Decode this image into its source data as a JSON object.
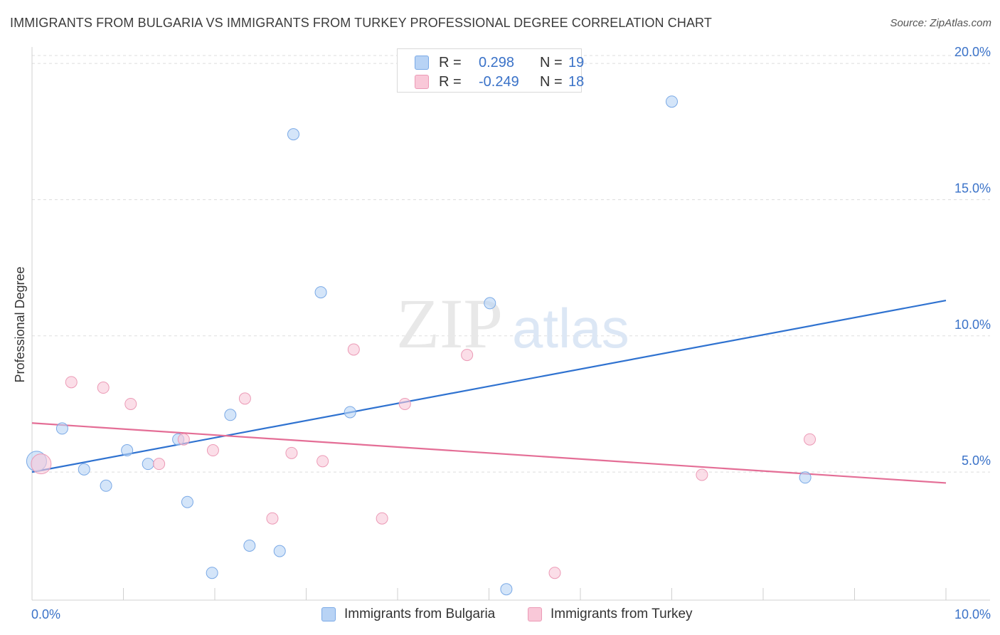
{
  "title": "IMMIGRANTS FROM BULGARIA VS IMMIGRANTS FROM TURKEY PROFESSIONAL DEGREE CORRELATION CHART",
  "source": "Source: ZipAtlas.com",
  "watermark": {
    "zip": "ZIP",
    "atlas": "atlas"
  },
  "legend": {
    "rows": [
      {
        "r_label": "R =",
        "r_value": "0.298",
        "n_label": "N =",
        "n_value": "19"
      },
      {
        "r_label": "R =",
        "r_value": "-0.249",
        "n_label": "N =",
        "n_value": "18"
      }
    ]
  },
  "colors": {
    "bulgaria_fill": "#b8d3f5",
    "bulgaria_stroke": "#7aa9e6",
    "bulgaria_line": "#2f72d0",
    "turkey_fill": "#f9c8d8",
    "turkey_stroke": "#ec9ab6",
    "turkey_line": "#e46e96",
    "axis_label": "#3a72c8"
  },
  "chart_data": {
    "type": "scatter",
    "title": "IMMIGRANTS FROM BULGARIA VS IMMIGRANTS FROM TURKEY PROFESSIONAL DEGREE CORRELATION CHART",
    "xlabel": "",
    "ylabel": "Professional Degree",
    "xlim": [
      0,
      10
    ],
    "ylim": [
      0.3,
      20.5
    ],
    "x_tick_labels": [
      "0.0%",
      "10.0%"
    ],
    "y_ticks": [
      5,
      10,
      15,
      20
    ],
    "y_tick_labels": [
      "5.0%",
      "10.0%",
      "15.0%",
      "20.0%"
    ],
    "grid": true,
    "legend_position": "bottom",
    "series": [
      {
        "name": "Immigrants from Bulgaria",
        "r": 0.298,
        "n": 19,
        "points": [
          {
            "x": 0.05,
            "y": 5.4,
            "size": 14
          },
          {
            "x": 0.33,
            "y": 6.6,
            "size": 8
          },
          {
            "x": 0.57,
            "y": 5.1,
            "size": 8
          },
          {
            "x": 0.81,
            "y": 4.5,
            "size": 8
          },
          {
            "x": 1.04,
            "y": 5.8,
            "size": 8
          },
          {
            "x": 1.27,
            "y": 5.3,
            "size": 8
          },
          {
            "x": 1.6,
            "y": 6.2,
            "size": 8
          },
          {
            "x": 1.7,
            "y": 3.9,
            "size": 8
          },
          {
            "x": 1.97,
            "y": 1.3,
            "size": 8
          },
          {
            "x": 2.17,
            "y": 7.1,
            "size": 8
          },
          {
            "x": 2.38,
            "y": 2.3,
            "size": 8
          },
          {
            "x": 2.71,
            "y": 2.1,
            "size": 8
          },
          {
            "x": 2.86,
            "y": 17.4,
            "size": 8
          },
          {
            "x": 3.16,
            "y": 11.6,
            "size": 8
          },
          {
            "x": 3.48,
            "y": 7.2,
            "size": 8
          },
          {
            "x": 5.01,
            "y": 11.2,
            "size": 8
          },
          {
            "x": 5.19,
            "y": 0.7,
            "size": 8
          },
          {
            "x": 7.0,
            "y": 18.6,
            "size": 8
          },
          {
            "x": 8.46,
            "y": 4.8,
            "size": 8
          }
        ],
        "trend": {
          "x": [
            0,
            10
          ],
          "y": [
            5.0,
            11.3
          ]
        }
      },
      {
        "name": "Immigrants from Turkey",
        "r": -0.249,
        "n": 18,
        "points": [
          {
            "x": 0.1,
            "y": 5.3,
            "size": 14
          },
          {
            "x": 0.43,
            "y": 8.3,
            "size": 8
          },
          {
            "x": 0.78,
            "y": 8.1,
            "size": 8
          },
          {
            "x": 1.08,
            "y": 7.5,
            "size": 8
          },
          {
            "x": 1.39,
            "y": 5.3,
            "size": 8
          },
          {
            "x": 1.66,
            "y": 6.2,
            "size": 8
          },
          {
            "x": 1.98,
            "y": 5.8,
            "size": 8
          },
          {
            "x": 2.33,
            "y": 7.7,
            "size": 8
          },
          {
            "x": 2.63,
            "y": 3.3,
            "size": 8
          },
          {
            "x": 2.84,
            "y": 5.7,
            "size": 8
          },
          {
            "x": 3.18,
            "y": 5.4,
            "size": 8
          },
          {
            "x": 3.52,
            "y": 9.5,
            "size": 8
          },
          {
            "x": 3.83,
            "y": 3.3,
            "size": 8
          },
          {
            "x": 4.08,
            "y": 7.5,
            "size": 8
          },
          {
            "x": 4.76,
            "y": 9.3,
            "size": 8
          },
          {
            "x": 5.72,
            "y": 1.3,
            "size": 8
          },
          {
            "x": 7.33,
            "y": 4.9,
            "size": 8
          },
          {
            "x": 8.51,
            "y": 6.2,
            "size": 8
          }
        ],
        "trend": {
          "x": [
            0,
            10
          ],
          "y": [
            6.8,
            4.6
          ]
        }
      }
    ]
  }
}
